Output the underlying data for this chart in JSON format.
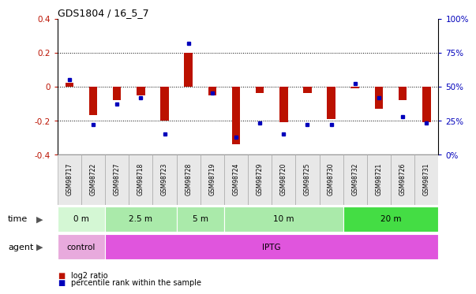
{
  "title": "GDS1804 / 16_5_7",
  "samples": [
    "GSM98717",
    "GSM98722",
    "GSM98727",
    "GSM98718",
    "GSM98723",
    "GSM98728",
    "GSM98719",
    "GSM98724",
    "GSM98729",
    "GSM98720",
    "GSM98725",
    "GSM98730",
    "GSM98732",
    "GSM98721",
    "GSM98726",
    "GSM98731"
  ],
  "log2_ratio": [
    0.02,
    -0.17,
    -0.08,
    -0.05,
    -0.2,
    0.2,
    -0.05,
    -0.34,
    -0.04,
    -0.21,
    -0.04,
    -0.19,
    -0.01,
    -0.13,
    -0.08,
    -0.21
  ],
  "pct_rank": [
    55,
    22,
    37,
    42,
    15,
    82,
    45,
    13,
    23,
    15,
    22,
    22,
    52,
    42,
    28,
    23
  ],
  "time_groups": [
    {
      "label": "0 m",
      "start": 0,
      "end": 2,
      "color": "#d4f7d4"
    },
    {
      "label": "2.5 m",
      "start": 2,
      "end": 5,
      "color": "#aaeaaa"
    },
    {
      "label": "5 m",
      "start": 5,
      "end": 7,
      "color": "#aaeaaa"
    },
    {
      "label": "10 m",
      "start": 7,
      "end": 12,
      "color": "#aaeaaa"
    },
    {
      "label": "20 m",
      "start": 12,
      "end": 16,
      "color": "#44dd44"
    }
  ],
  "agent_groups": [
    {
      "label": "control",
      "start": 0,
      "end": 2,
      "color": "#e8aadd"
    },
    {
      "label": "IPTG",
      "start": 2,
      "end": 16,
      "color": "#e055dd"
    }
  ],
  "bar_color": "#bb1100",
  "dot_color": "#0000bb",
  "ylim": [
    -0.4,
    0.4
  ],
  "yticks_left": [
    -0.4,
    -0.2,
    0.0,
    0.2,
    0.4
  ],
  "yticks_left_labels": [
    "-0.4",
    "-0.2",
    "0",
    "0.2",
    "0.4"
  ],
  "yticks_right_labels": [
    "0%",
    "25%",
    "50%",
    "75%",
    "100%"
  ],
  "dotted_lines": [
    -0.2,
    0.0,
    0.2
  ],
  "background_color": "#ffffff",
  "bar_width": 0.35
}
